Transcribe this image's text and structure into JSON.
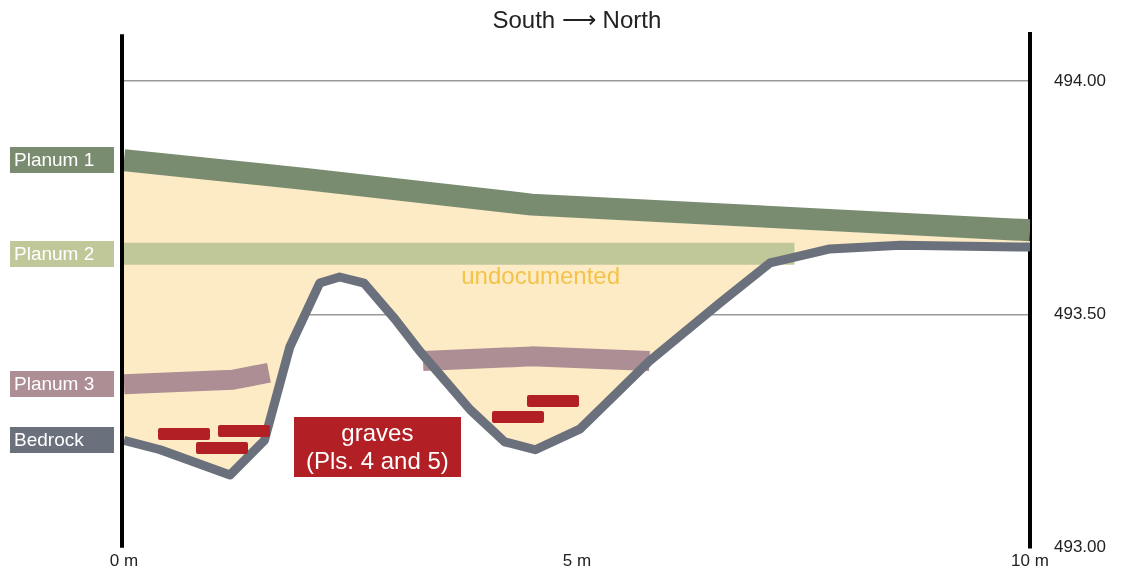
{
  "chart_data": {
    "type": "line",
    "title": "South ⟶ North",
    "xlim": [
      0,
      10
    ],
    "xticks": [
      {
        "value": 0,
        "label": "0 m"
      },
      {
        "value": 5,
        "label": "5 m"
      },
      {
        "value": 10,
        "label": "10 m"
      }
    ],
    "ylim": [
      493.0,
      494.1
    ],
    "yticks": [
      {
        "value": 493,
        "label": "493.00"
      },
      {
        "value": 493.5,
        "label": "493.50"
      },
      {
        "value": 494,
        "label": "494.00"
      }
    ],
    "grid": "y",
    "legend": "left",
    "marker": "none",
    "series": [
      {
        "name": "undocumented",
        "type": "area",
        "color": "#fcebc4",
        "x": [
          0,
          0.4,
          1.17,
          1.55,
          1.83,
          2.16,
          2.38,
          2.65,
          2.99,
          3.27,
          3.82,
          4.2,
          4.54,
          5.03,
          5.8,
          6.58,
          7.13,
          7.79,
          8.57,
          10
        ],
        "values": [
          493.807,
          493.799,
          493.784,
          493.776,
          493.77,
          493.763,
          493.759,
          493.753,
          493.745,
          493.739,
          493.727,
          493.719,
          493.712,
          493.707,
          493.699,
          493.691,
          493.686,
          493.679,
          493.671,
          493.657
        ]
      },
      {
        "name": "Planum 1",
        "color": "#7a8c70",
        "x": [
          0,
          2,
          4.5,
          7,
          10
        ],
        "values": [
          493.83,
          493.79,
          493.735,
          493.71,
          493.68
        ]
      },
      {
        "name": "Planum 2",
        "color": "#c0c89a",
        "x": [
          0,
          7.4
        ],
        "values": [
          493.63,
          493.63
        ]
      },
      {
        "name": "Planum 3",
        "color": "#ad8e94",
        "x": [
          0,
          1.2,
          1.6,
          2.5,
          3.3,
          4.5,
          5.8
        ],
        "values": [
          493.35,
          493.36,
          493.375,
          null,
          493.4,
          493.41,
          493.4
        ]
      },
      {
        "name": "Bedrock",
        "color": "#6b717c",
        "x": [
          0,
          0.4,
          1.17,
          1.55,
          1.83,
          2.16,
          2.38,
          2.65,
          2.99,
          3.27,
          3.82,
          4.2,
          4.54,
          5.03,
          5.8,
          6.58,
          7.13,
          7.79,
          8.57,
          10
        ],
        "values": [
          493.23,
          493.21,
          493.156,
          493.23,
          493.43,
          493.567,
          493.58,
          493.567,
          493.49,
          493.42,
          493.296,
          493.227,
          493.21,
          493.254,
          493.4,
          493.525,
          493.61,
          493.64,
          493.648,
          493.644
        ]
      }
    ],
    "annotations": [
      "graves\n(Pls. 4 and 5)"
    ]
  }
}
